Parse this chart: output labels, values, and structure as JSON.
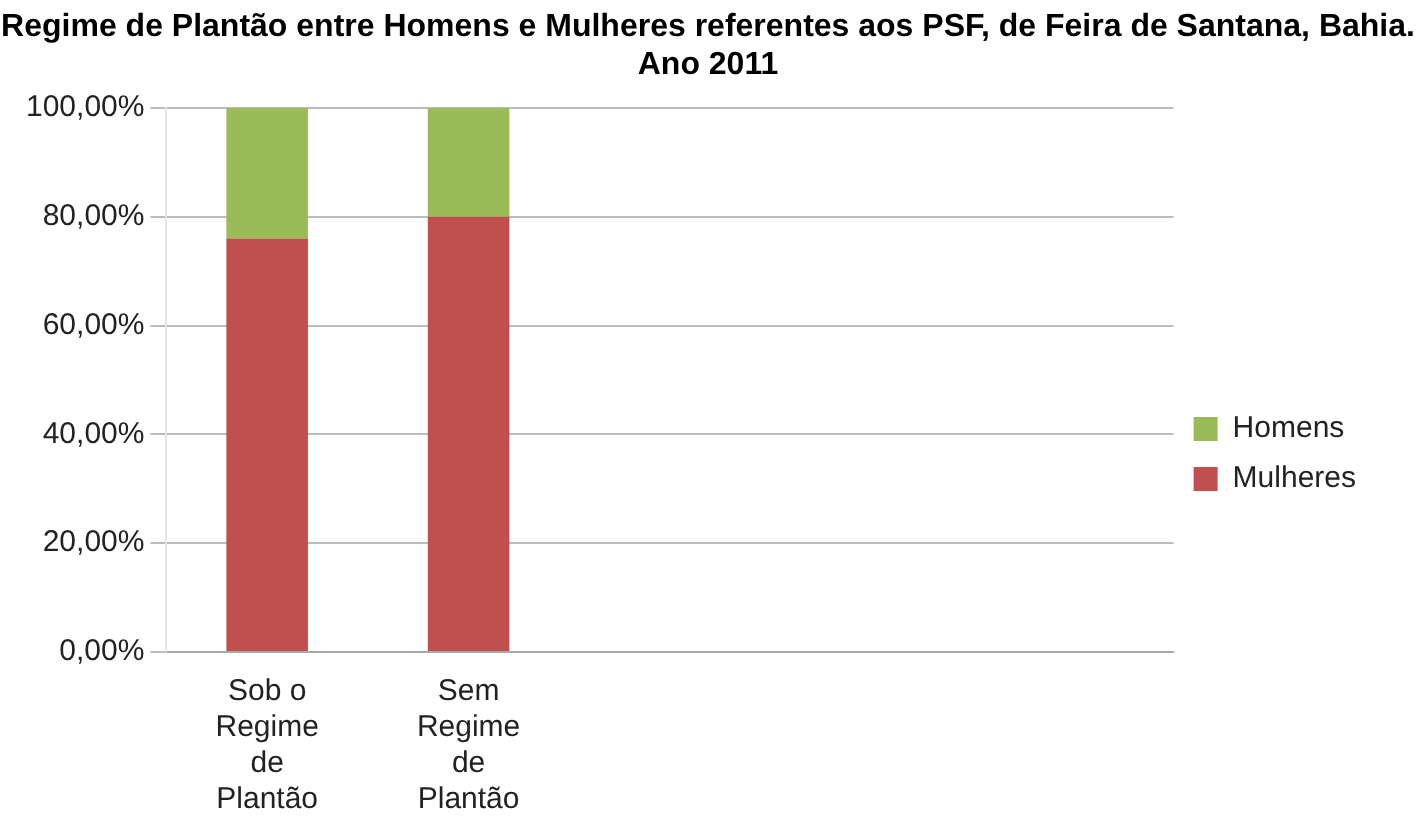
{
  "chart_data": {
    "type": "bar",
    "title": "Regime de Plantão entre Homens e Mulheres referentes aos PSF, de Feira de Santana, Bahia. Ano 2011",
    "categories": [
      "Sob o Regime de Plantão",
      "Sem Regime de Plantão",
      null,
      null,
      null
    ],
    "stacked": true,
    "series": [
      {
        "name": "Mulheres",
        "color": "#c0504d",
        "values": [
          76,
          80,
          null,
          null,
          null
        ]
      },
      {
        "name": "Homens",
        "color": "#9bbb59",
        "values": [
          24,
          20,
          null,
          null,
          null
        ]
      }
    ],
    "ylim": [
      0,
      100
    ],
    "yticks": [
      {
        "value": 0,
        "label": "0,00%"
      },
      {
        "value": 20,
        "label": "20,00%"
      },
      {
        "value": 40,
        "label": "40,00%"
      },
      {
        "value": 60,
        "label": "60,00%"
      },
      {
        "value": 80,
        "label": "80,00%"
      },
      {
        "value": 100,
        "label": "100,00%"
      }
    ],
    "grid": "y",
    "legend": "right"
  }
}
